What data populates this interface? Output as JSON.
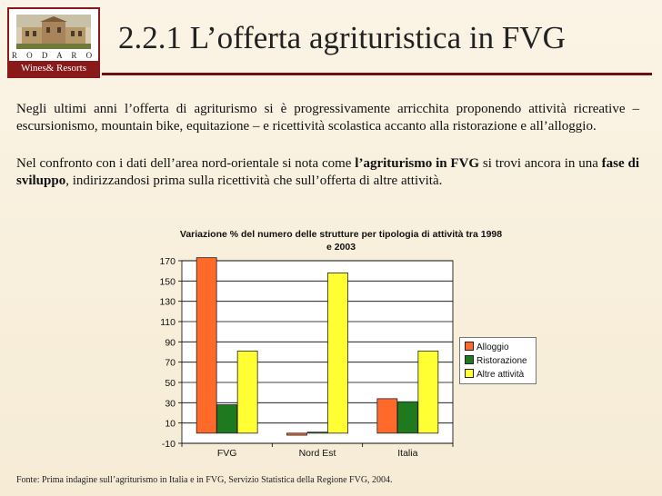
{
  "logo": {
    "brand": "R O D A R O",
    "subtitle": "Wines& Resorts"
  },
  "title": "2.2.1 L’offerta agrituristica in FVG",
  "paragraphs": {
    "p1": "Negli ultimi anni l’offerta di agriturismo si è progressivamente arricchita proponendo attività ricreative – escursionismo, mountain bike, equitazione – e ricettività scolastica accanto alla ristorazione e all’alloggio.",
    "p2_a": "Nel confronto con i dati dell’area nord-orientale si nota come ",
    "p2_b": "l’agriturismo in FVG",
    "p2_c": " si trovi ancora in una ",
    "p2_d": "fase di sviluppo",
    "p2_e": ", indirizzandosi prima sulla ricettività che sull’offerta di altre attività."
  },
  "footer": "Fonte: Prima indagine sull’agriturismo in Italia e in FVG, Servizio Statistica della Regione FVG, 2004.",
  "chart_data": {
    "type": "bar",
    "title": "Variazione % del numero delle strutture per tipologia di attività tra 1998 e 2003",
    "categories": [
      "FVG",
      "Nord Est",
      "Italia"
    ],
    "series": [
      {
        "name": "Alloggio",
        "color": "#ff6a2a",
        "values": [
          173,
          -2,
          34
        ]
      },
      {
        "name": "Ristorazione",
        "color": "#1f7a1f",
        "values": [
          28,
          1,
          31
        ]
      },
      {
        "name": "Altre attività",
        "color": "#ffff33",
        "values": [
          81,
          158,
          81
        ]
      }
    ],
    "ylim": [
      -10,
      170
    ],
    "yticks": [
      "-10",
      "10",
      "30",
      "50",
      "70",
      "90",
      "110",
      "130",
      "150",
      "170"
    ],
    "grid": true,
    "legend": "right"
  }
}
